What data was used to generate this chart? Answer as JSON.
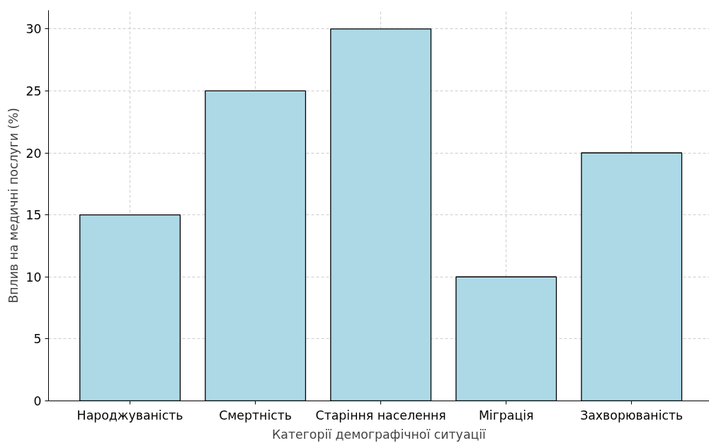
{
  "chart_data": {
    "type": "bar",
    "xlabel": "Категорії демографічної ситуації",
    "ylabel": "Вплив на медичні послуги (%)",
    "categories": [
      "Народжуваність",
      "Смертність",
      "Старіння населення",
      "Міграція",
      "Захворюваність"
    ],
    "values": [
      15,
      25,
      30,
      10,
      20
    ],
    "color": "#add8e6",
    "ylim": [
      0,
      31.5
    ],
    "yticks": [
      0,
      5,
      10,
      15,
      20,
      25,
      30
    ],
    "grid": true
  }
}
